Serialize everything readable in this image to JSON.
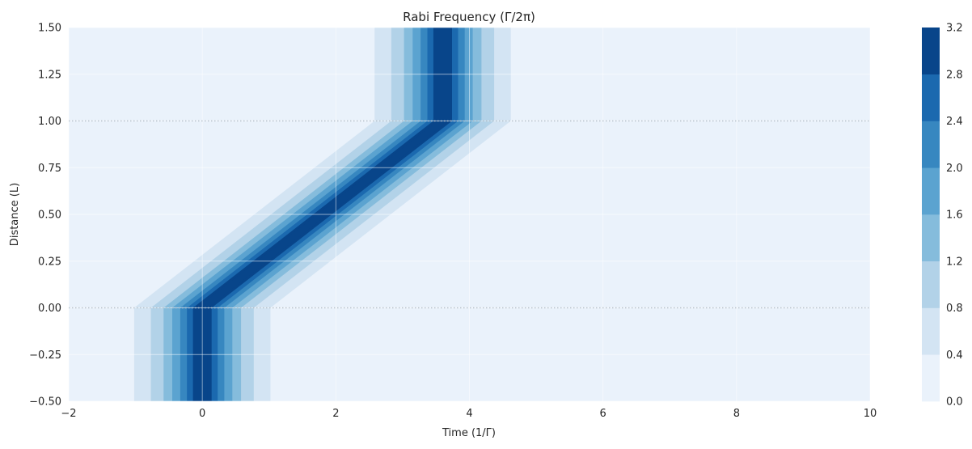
{
  "chart_data": {
    "type": "heatmap",
    "title": "Rabi Frequency (Γ/2π)",
    "xlabel": "Time (1/Γ)",
    "ylabel": "Distance (L)",
    "xlim": [
      -2,
      10
    ],
    "ylim": [
      -0.5,
      1.5
    ],
    "xticks": [
      -2,
      0,
      2,
      4,
      6,
      8,
      10
    ],
    "xtick_labels": [
      "−2",
      "0",
      "2",
      "4",
      "6",
      "8",
      "10"
    ],
    "yticks": [
      -0.5,
      -0.25,
      0,
      0.25,
      0.5,
      0.75,
      1.0,
      1.25,
      1.5
    ],
    "ytick_labels": [
      "−0.50",
      "−0.25",
      "0.00",
      "0.25",
      "0.50",
      "0.75",
      "1.00",
      "1.25",
      "1.50"
    ],
    "grid": true,
    "reference_lines_y": [
      0,
      1.0
    ],
    "pulse": {
      "peak": 3.2,
      "center_time_at_bottom": 0.0,
      "center_time_at_top": 3.6,
      "ramp_region_y": [
        0,
        1.0
      ],
      "half_width_at_level": [
        1.02,
        0.77,
        0.58,
        0.45,
        0.33,
        0.23,
        0.14,
        0.08
      ]
    },
    "colorbar": {
      "levels": [
        0.0,
        0.4,
        0.8,
        1.2,
        1.6,
        2.0,
        2.4,
        2.8,
        3.2
      ],
      "tick_labels": [
        "0.0",
        "0.4",
        "0.8",
        "1.2",
        "1.6",
        "2.0",
        "2.4",
        "2.8",
        "3.2"
      ],
      "colors": [
        "#eaf2fb",
        "#d3e4f3",
        "#b2d2e8",
        "#85bcdc",
        "#5ba3d0",
        "#3787c0",
        "#1b69af",
        "#08458a"
      ]
    }
  }
}
